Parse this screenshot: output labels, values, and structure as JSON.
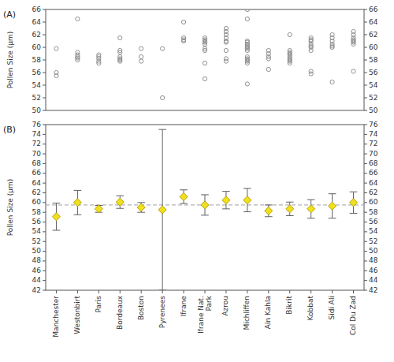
{
  "chart_data": [
    {
      "type": "dot",
      "title": "(A)",
      "categories": [
        "Manchester",
        "Westonbirt",
        "Paris",
        "Bordeaux",
        "Boston",
        "Pyrenees",
        "Ifrane",
        "Ifrane Nat.\nPark",
        "Azrou",
        "Michliffen",
        "Ain Kahla",
        "Bikrit",
        "Kobbat",
        "Sidi Ali",
        "Col Du Zad"
      ],
      "values": [
        [
          55.5,
          56.0,
          59.8
        ],
        [
          64.5,
          59.2,
          58.8,
          58.5,
          58.3,
          58.0
        ],
        [
          58.8,
          58.5,
          58.2,
          57.8,
          57.5
        ],
        [
          61.5,
          59.5,
          59.2,
          58.5,
          58.2,
          58.0,
          57.8
        ],
        [
          59.8,
          58.5,
          57.8
        ],
        [
          52.0,
          59.8
        ],
        [
          64.0,
          61.5,
          61.2,
          61.0
        ],
        [
          61.5,
          61.2,
          61.0,
          60.8,
          60.5,
          59.8,
          59.5,
          57.5,
          55.0
        ],
        [
          63.0,
          62.5,
          62.0,
          61.5,
          61.0,
          60.8,
          59.5,
          58.2,
          57.8
        ],
        [
          66.0,
          64.5,
          61.0,
          60.8,
          60.5,
          60.2,
          60.0,
          59.8,
          59.5,
          58.5,
          58.2,
          58.0,
          57.8,
          57.5,
          54.2
        ],
        [
          59.5,
          59.0,
          58.5,
          58.2,
          56.5
        ],
        [
          62.0,
          59.5,
          59.2,
          59.0,
          58.8,
          58.5,
          58.2,
          58.0,
          57.8,
          57.5
        ],
        [
          61.5,
          61.2,
          61.0,
          60.5,
          60.2,
          60.0,
          59.5,
          56.2,
          55.8
        ],
        [
          62.0,
          61.5,
          61.0,
          60.5,
          60.2,
          60.0,
          54.5
        ],
        [
          62.5,
          62.0,
          61.5,
          61.2,
          61.0,
          60.8,
          60.5,
          56.2
        ]
      ],
      "color": "#909090",
      "marker": "circle",
      "y_label": "Pollen Size (µm)",
      "ylim": [
        50,
        66
      ],
      "yticks": [
        50,
        52,
        54,
        56,
        58,
        60,
        62,
        64,
        66
      ],
      "y2lim": [
        50,
        66
      ],
      "y2ticks": [
        50,
        52,
        54,
        56,
        58,
        60,
        62,
        64,
        66
      ],
      "grid": false,
      "tick_labels": "y"
    },
    {
      "type": "errorbar",
      "title": "(B)",
      "categories": [
        "Manchester",
        "Westonbirt",
        "Paris",
        "Bordeaux",
        "Boston",
        "Pyrenees",
        "Ifrane",
        "Ifrane Nat.\nPark",
        "Azrou",
        "Michliffen",
        "Ain Kahla",
        "Bikrit",
        "Kobbat",
        "Sidi Ali",
        "Col Du Zad"
      ],
      "values": [
        57.1,
        60.0,
        58.7,
        60.1,
        59.0,
        58.5,
        61.2,
        59.5,
        60.5,
        60.5,
        58.3,
        58.7,
        58.7,
        59.3,
        60.0
      ],
      "errors": [
        2.8,
        2.5,
        0.7,
        1.3,
        1.0,
        16.5,
        1.4,
        2.1,
        1.8,
        2.4,
        1.2,
        1.4,
        1.9,
        2.5,
        2.2
      ],
      "grand_mean": 59.5,
      "color": "#f0e020",
      "marker": "diamond",
      "y_label": "Pollen Size (µm)",
      "ylim": [
        42,
        76
      ],
      "yticks": [
        42,
        44,
        46,
        48,
        50,
        52,
        54,
        56,
        58,
        60,
        62,
        64,
        66,
        68,
        70,
        72,
        74,
        76
      ],
      "y2lim": [
        42,
        76
      ],
      "y2ticks": [
        42,
        44,
        46,
        48,
        50,
        52,
        54,
        56,
        58,
        60,
        62,
        64,
        66,
        68,
        70,
        72,
        74,
        76
      ],
      "grid": false
    }
  ]
}
